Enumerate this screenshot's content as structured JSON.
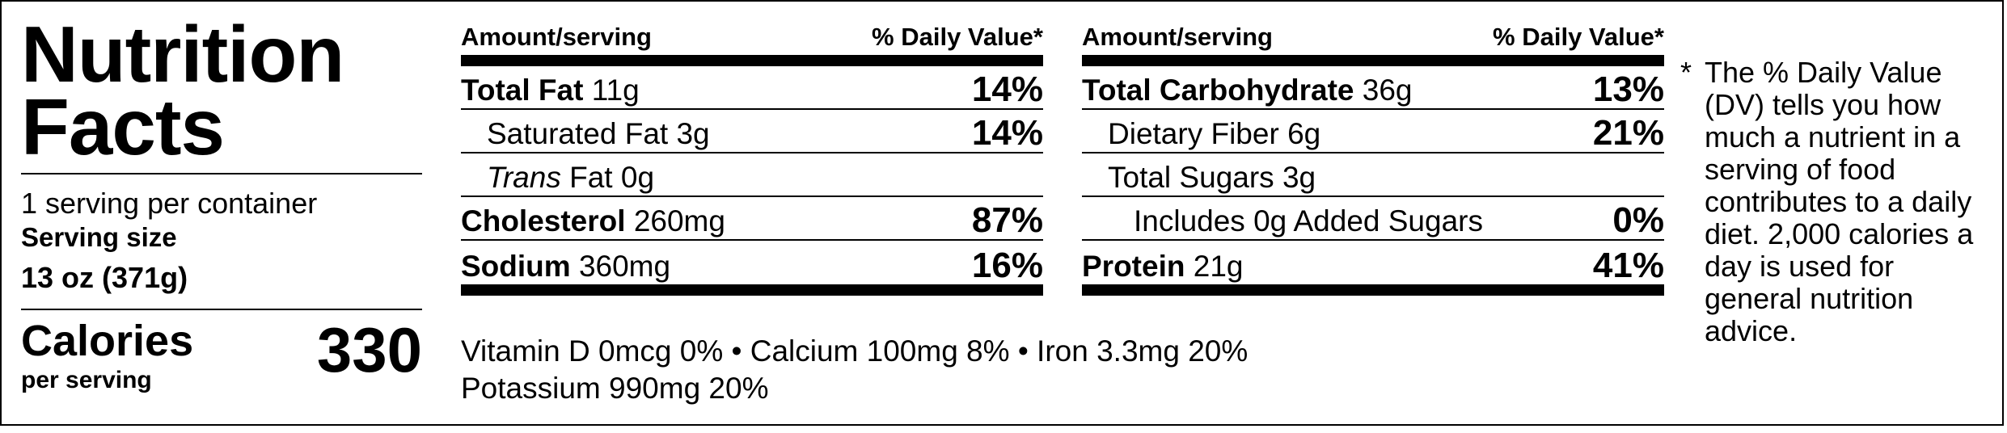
{
  "title": "Nutrition Facts",
  "servings_per_container": "1 serving per container",
  "serving_size": {
    "label": "Serving size",
    "value": "13 oz (371g)"
  },
  "calories": {
    "label": "Calories",
    "sublabel": "per serving",
    "value": "330"
  },
  "header": {
    "amount": "Amount/serving",
    "dv": "% Daily Value*"
  },
  "left_table": [
    {
      "name": "Total Fat",
      "amount": "11g",
      "dv": "14%"
    },
    {
      "name": "Saturated Fat",
      "amount": "3g",
      "dv": "14%"
    },
    {
      "name": "Trans",
      "name_rest": "Fat 0g",
      "dv": ""
    },
    {
      "name": "Cholesterol",
      "amount": "260mg",
      "dv": "87%"
    },
    {
      "name": "Sodium",
      "amount": "360mg",
      "dv": "16%"
    }
  ],
  "right_table": [
    {
      "name": "Total Carbohydrate",
      "amount": "36g",
      "dv": "13%"
    },
    {
      "name": "Dietary Fiber",
      "amount": "6g",
      "dv": "21%"
    },
    {
      "name": "Total Sugars",
      "amount": "3g",
      "dv": ""
    },
    {
      "name": "Includes 0g Added Sugars",
      "dv": "0%"
    },
    {
      "name": "Protein",
      "amount": "21g",
      "dv": "41%"
    }
  ],
  "vitamins": {
    "line1": "Vitamin D 0mcg 0% • Calcium 100mg 8% • Iron 3.3mg 20%",
    "line2": "Potassium 990mg 20%"
  },
  "footnote": {
    "star": "*",
    "text": "The % Daily Value (DV) tells you how much a nutrient in a serving of food contributes to a daily diet. 2,000 calories a day is used for general nutrition advice."
  }
}
